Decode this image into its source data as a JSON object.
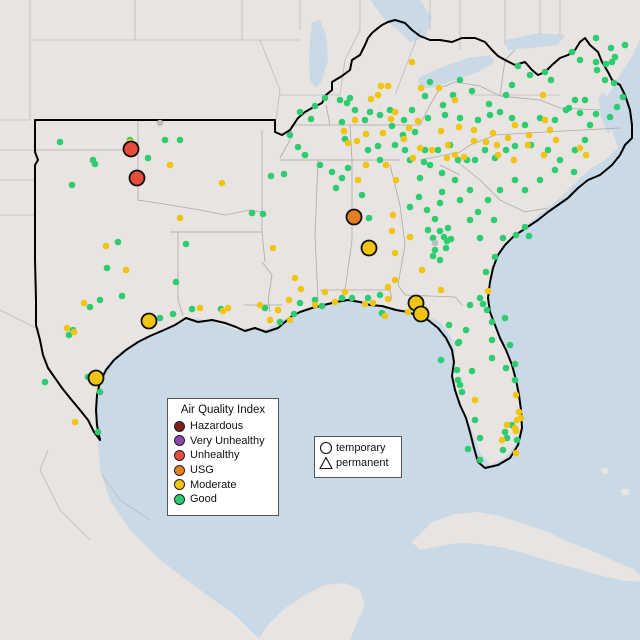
{
  "colors": {
    "ocean": "#c9d9e6",
    "land": "#e8e4e1",
    "land_alt": "#e2ddd9",
    "borders": "#bcbcbc",
    "region_outline": "#000000"
  },
  "legend_aqi": {
    "title": "Air Quality Index",
    "items": [
      {
        "label": "Hazardous",
        "color": "#7e1f1f"
      },
      {
        "label": "Very Unhealthy",
        "color": "#8e44ad"
      },
      {
        "label": "Unhealthy",
        "color": "#e74c3c"
      },
      {
        "label": "USG",
        "color": "#e67e22"
      },
      {
        "label": "Moderate",
        "color": "#f1c40f"
      },
      {
        "label": "Good",
        "color": "#2ecc71"
      }
    ]
  },
  "legend_monitor_type": {
    "items": [
      {
        "label": "temporary",
        "icon": "circle-icon"
      },
      {
        "label": "permanent",
        "icon": "triangle-icon"
      }
    ]
  },
  "station_counts": {
    "good": 224,
    "moderate": 100,
    "usg": 2,
    "unhealthy": 2,
    "temporary_large": 7
  }
}
